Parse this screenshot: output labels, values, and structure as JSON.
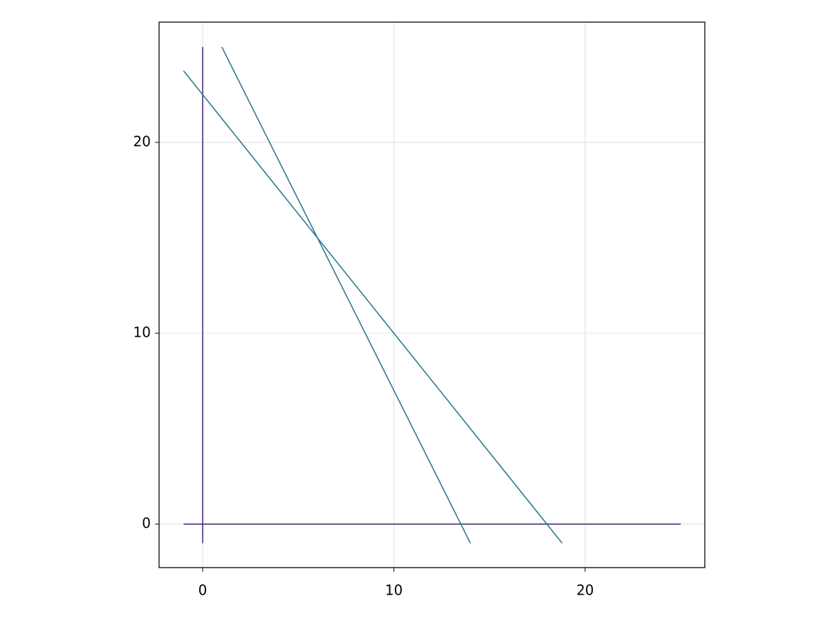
{
  "chart_data": {
    "type": "line",
    "series": [
      {
        "color": "#472c7a",
        "x": [
          0,
          0
        ],
        "values": [
          -1,
          25
        ]
      },
      {
        "color": "#472c7a",
        "x": [
          -1,
          25
        ],
        "values": [
          0,
          0
        ]
      },
      {
        "color": "#2a788e",
        "x": [
          -1,
          18.8
        ],
        "values": [
          23.75,
          -1
        ]
      },
      {
        "color": "#2a788e",
        "x": [
          1,
          14
        ],
        "values": [
          25,
          -1
        ]
      }
    ],
    "xlim": [
      -2.28,
      26.26
    ],
    "ylim": [
      -2.28,
      26.3
    ],
    "xticks": [
      0,
      10,
      20
    ],
    "yticks": [
      0,
      10,
      20
    ],
    "grid": true
  }
}
